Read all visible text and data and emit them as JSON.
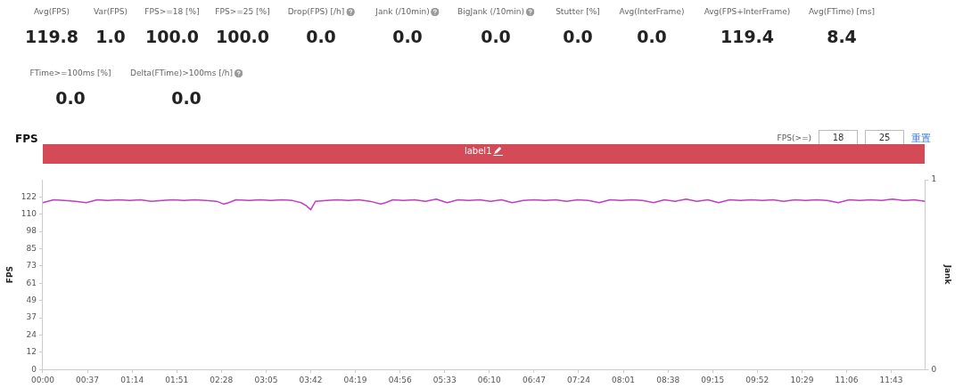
{
  "chart_data": [
    {
      "type": "other",
      "categories": [
        "Avg(FPS)",
        "Var(FPS)",
        "FPS>=18 [%]",
        "FPS>=25 [%]",
        "Drop(FPS) [/h]",
        "Jank (/10min)",
        "BigJank (/10min)",
        "Stutter [%]",
        "Avg(InterFrame)",
        "Avg(FPS+InterFrame)",
        "Avg(FTime) [ms]",
        "FTime>=100ms [%]",
        "Delta(FTime)>100ms [/h]"
      ],
      "value_labels": [
        "119.8",
        "1.0",
        "100.0",
        "100.0",
        "0.0",
        "0.0",
        "0.0",
        "0.0",
        "0.0",
        "119.4",
        "8.4",
        "0.0",
        "0.0"
      ]
    },
    {
      "type": "line",
      "title": "FPS",
      "ylabel": "FPS",
      "y2label": "Jank",
      "x": [
        0,
        9,
        18,
        27,
        36,
        45,
        54,
        63,
        72,
        81,
        90,
        99,
        108,
        117,
        126,
        135,
        144,
        150,
        154,
        160,
        171,
        180,
        189,
        198,
        207,
        214,
        218,
        222,
        226,
        235,
        244,
        253,
        262,
        271,
        280,
        284,
        290,
        299,
        308,
        317,
        326,
        335,
        344,
        353,
        362,
        371,
        380,
        389,
        398,
        407,
        416,
        425,
        434,
        443,
        452,
        461,
        470,
        479,
        488,
        497,
        506,
        515,
        524,
        533,
        542,
        551,
        560,
        569,
        578,
        587,
        596,
        605,
        614,
        623,
        632,
        641,
        650,
        659,
        668,
        677,
        686,
        695,
        704,
        713,
        722,
        731
      ],
      "series": [
        {
          "color": "#c13fc0",
          "values": [
            118,
            120,
            119.5,
            119,
            118,
            120,
            119.5,
            120,
            119.5,
            120,
            119,
            119.5,
            120,
            119.5,
            120,
            119.5,
            119,
            117,
            118,
            120,
            119.5,
            120,
            119.5,
            120,
            119.5,
            118,
            116,
            113,
            119,
            119.5,
            120,
            119.5,
            120,
            119,
            117,
            118,
            120,
            119.5,
            120,
            119,
            120.5,
            118,
            120,
            119.5,
            120,
            119,
            120,
            118,
            119.5,
            120,
            119.5,
            120,
            119,
            120,
            119.5,
            118,
            120,
            119.5,
            120,
            119.5,
            118,
            120,
            119,
            120.5,
            119,
            120,
            118,
            120,
            119.5,
            120,
            119.5,
            120,
            119,
            120,
            119.5,
            120,
            119.5,
            118,
            120,
            119.5,
            120,
            119.5,
            120.5,
            119.5,
            120,
            119
          ]
        }
      ],
      "xlim": [
        0,
        731
      ],
      "xticks": [
        {
          "value": 0,
          "label": "00:00"
        },
        {
          "value": 37,
          "label": "00:37"
        },
        {
          "value": 74,
          "label": "01:14"
        },
        {
          "value": 111,
          "label": "01:51"
        },
        {
          "value": 148,
          "label": "02:28"
        },
        {
          "value": 185,
          "label": "03:05"
        },
        {
          "value": 222,
          "label": "03:42"
        },
        {
          "value": 259,
          "label": "04:19"
        },
        {
          "value": 296,
          "label": "04:56"
        },
        {
          "value": 333,
          "label": "05:33"
        },
        {
          "value": 370,
          "label": "06:10"
        },
        {
          "value": 407,
          "label": "06:47"
        },
        {
          "value": 444,
          "label": "07:24"
        },
        {
          "value": 481,
          "label": "08:01"
        },
        {
          "value": 518,
          "label": "08:38"
        },
        {
          "value": 555,
          "label": "09:15"
        },
        {
          "value": 592,
          "label": "09:52"
        },
        {
          "value": 629,
          "label": "10:29"
        },
        {
          "value": 666,
          "label": "11:06"
        },
        {
          "value": 703,
          "label": "11:43"
        }
      ],
      "ylim": [
        0,
        134.2
      ],
      "yticks": [
        0,
        {
          "value": 12.2,
          "label": "12"
        },
        {
          "value": 24.4,
          "label": "24"
        },
        {
          "value": 36.6,
          "label": "37"
        },
        {
          "value": 48.8,
          "label": "49"
        },
        61,
        {
          "value": 73.2,
          "label": "73"
        },
        {
          "value": 85.4,
          "label": "85"
        },
        {
          "value": 97.6,
          "label": "98"
        },
        {
          "value": 109.8,
          "label": "110"
        },
        122
      ],
      "y2lim": [
        0,
        1
      ],
      "y2ticks": [
        0,
        1
      ],
      "annotations": [
        "label1",
        "FPS(>=)",
        "18",
        "25",
        "重置"
      ],
      "grid": false,
      "legend": false,
      "marker": "none",
      "line_style": "solid"
    }
  ]
}
